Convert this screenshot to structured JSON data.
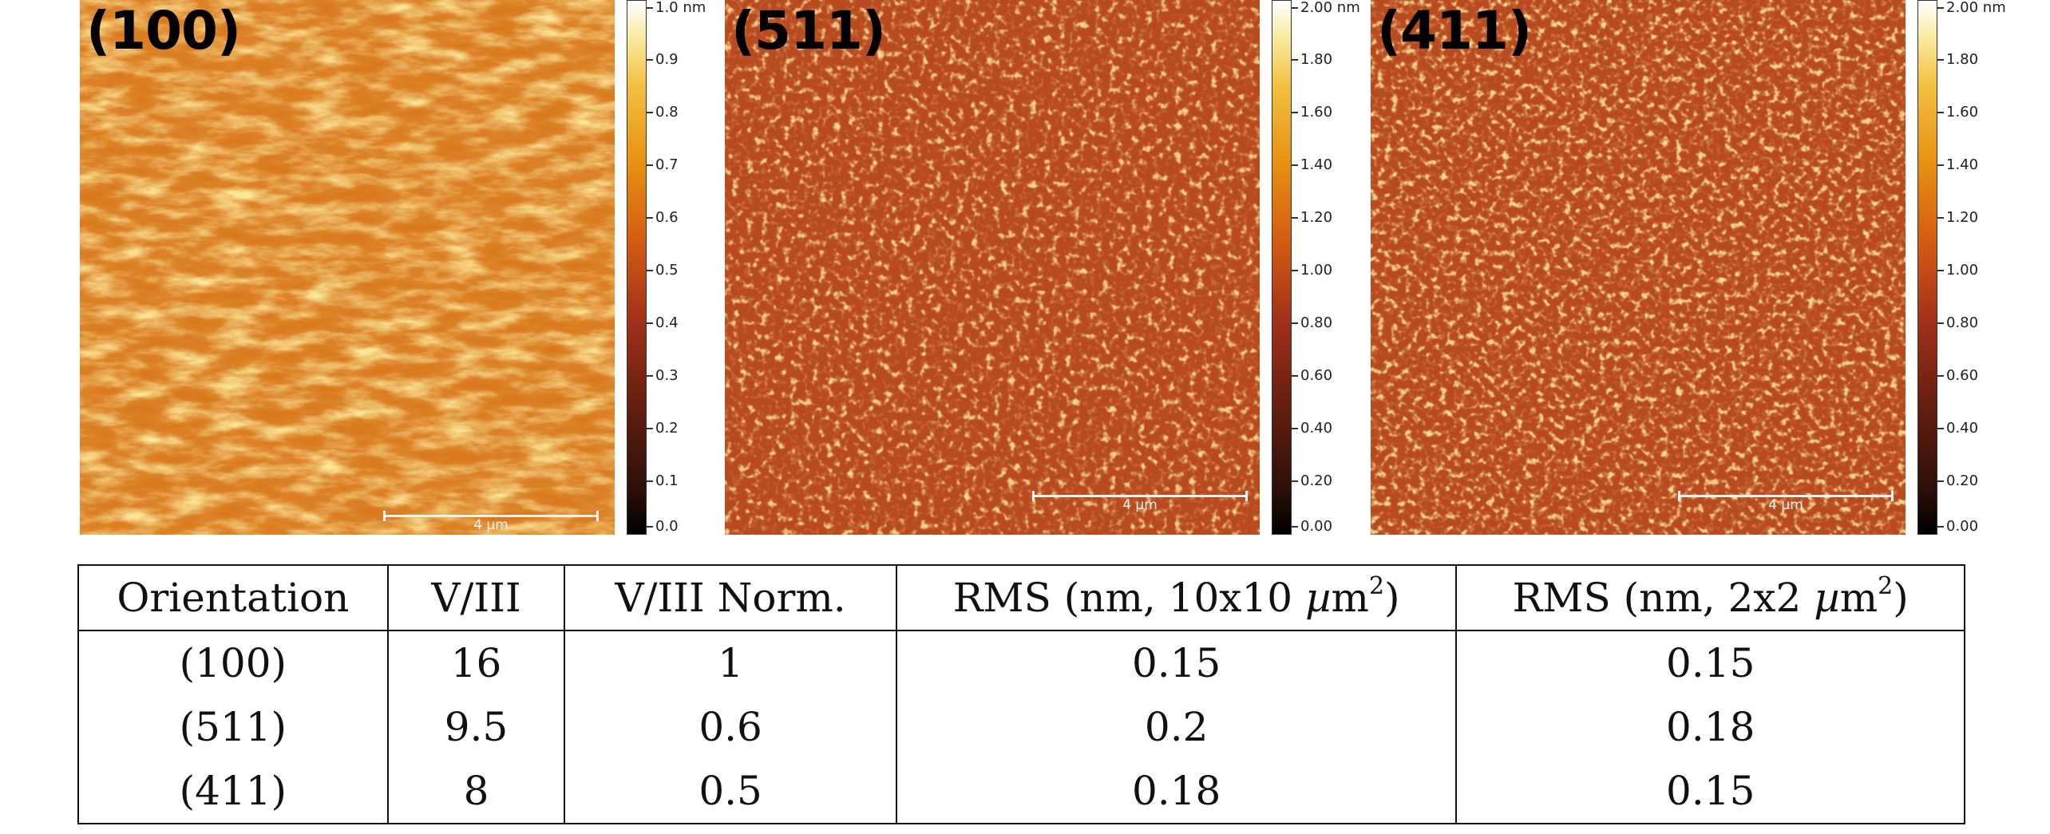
{
  "panels": [
    {
      "label": "(100)",
      "scale_bar": "4 µm",
      "colorbar_ticks": [
        "1.0 nm",
        "0.9",
        "0.8",
        "0.7",
        "0.6",
        "0.5",
        "0.4",
        "0.3",
        "0.2",
        "0.1",
        "0.0"
      ]
    },
    {
      "label": "(511)",
      "scale_bar": "4 µm",
      "colorbar_ticks": [
        "2.00 nm",
        "1.80",
        "1.60",
        "1.40",
        "1.20",
        "1.00",
        "0.80",
        "0.60",
        "0.40",
        "0.20",
        "0.00"
      ]
    },
    {
      "label": "(411)",
      "scale_bar": "4 µm",
      "colorbar_ticks": [
        "2.00 nm",
        "1.80",
        "1.60",
        "1.40",
        "1.20",
        "1.00",
        "0.80",
        "0.60",
        "0.40",
        "0.20",
        "0.00"
      ]
    }
  ],
  "table": {
    "headers": {
      "orientation": "Orientation",
      "v3": "V/III",
      "v3norm": "V/III Norm.",
      "rms10_prefix": "RMS (nm, 10x10 ",
      "rms2_prefix": "RMS (nm, 2x2 ",
      "mu": "µ",
      "m": "m",
      "sup": "2",
      "close": ")"
    },
    "rows": [
      [
        "(100)",
        "16",
        "1",
        "0.15",
        "0.15"
      ],
      [
        "(511)",
        "9.5",
        "0.6",
        "0.2",
        "0.18"
      ],
      [
        "(411)",
        "8",
        "0.5",
        "0.18",
        "0.15"
      ]
    ]
  },
  "colors": {
    "afm_dark": "#1a0503",
    "afm_mid": "#b5421a",
    "afm_bright": "#f5c245",
    "afm_100_base": "#d9781c",
    "afm_hkl_base": "#b84a20"
  }
}
